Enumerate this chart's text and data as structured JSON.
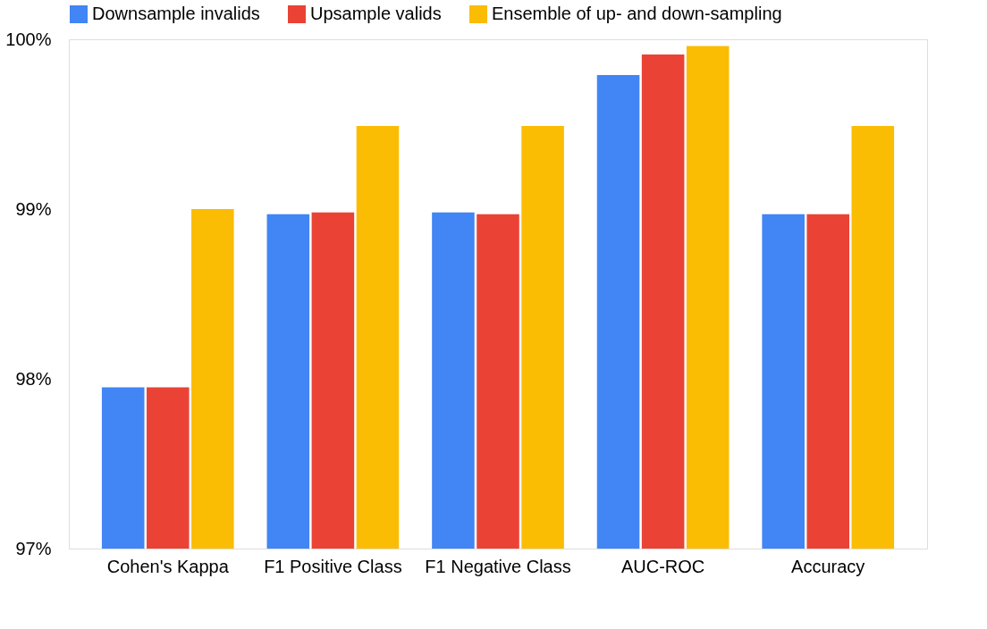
{
  "chart_data": {
    "type": "bar",
    "categories": [
      "Cohen's Kappa",
      "F1 Positive Class",
      "F1 Negative Class",
      "AUC-ROC",
      "Accuracy"
    ],
    "series": [
      {
        "name": "Downsample invalids",
        "color": "#4285f4",
        "values": [
          97.95,
          98.97,
          98.98,
          99.79,
          98.97
        ]
      },
      {
        "name": "Upsample valids",
        "color": "#ea4335",
        "values": [
          97.95,
          98.98,
          98.97,
          99.91,
          98.97
        ]
      },
      {
        "name": "Ensemble of up- and down-sampling",
        "color": "#fbbc04",
        "values": [
          99.0,
          99.49,
          99.49,
          99.96,
          99.49
        ]
      }
    ],
    "ylim": [
      97,
      100
    ],
    "yticks": [
      {
        "value": 97,
        "label": "97%"
      },
      {
        "value": 98,
        "label": "98%"
      },
      {
        "value": 99,
        "label": "99%"
      },
      {
        "value": 100,
        "label": "100%"
      }
    ],
    "grid": false,
    "legend": "top"
  }
}
